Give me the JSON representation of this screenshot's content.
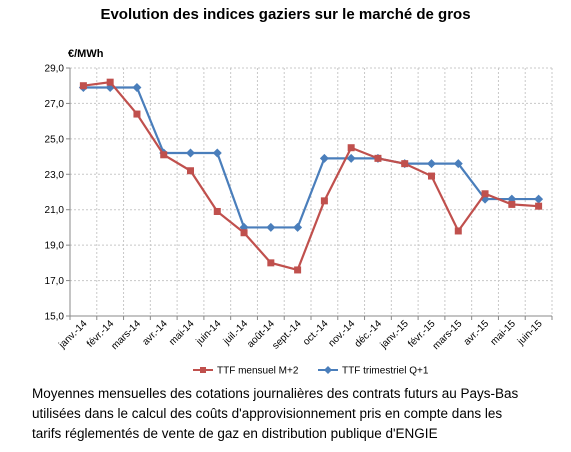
{
  "title": "Evolution des indices gaziers sur le marché de gros",
  "caption": {
    "line1": "Moyennes mensuelles des cotations journalières des contrats futurs au Pays-Bas",
    "line2": "utilisées dans le calcul des coûts d'approvisionnement pris en compte dans les",
    "line3": "tarifs réglementés de vente de gaz en distribution publique d'ENGIE"
  },
  "colors": {
    "series_m2": "#c0504d",
    "series_q1": "#4a7ebb",
    "grid": "#c8c8c8",
    "axis": "#888888"
  },
  "chart_data": {
    "type": "line",
    "ylabel": "€/MWh",
    "ylim": [
      15,
      29
    ],
    "yticks": [
      "15,0",
      "17,0",
      "19,0",
      "21,0",
      "23,0",
      "25,0",
      "27,0",
      "29,0"
    ],
    "grid": true,
    "legend_position": "bottom",
    "categories": [
      "janv.-14",
      "févr.-14",
      "mars-14",
      "avr.-14",
      "mai-14",
      "juin-14",
      "juil.-14",
      "août-14",
      "sept.-14",
      "oct.-14",
      "nov.-14",
      "déc.-14",
      "janv.-15",
      "févr.-15",
      "mars-15",
      "avr.-15",
      "mai-15",
      "juin-15"
    ],
    "series": [
      {
        "name": "TTF mensuel M+2",
        "marker": "square",
        "values": [
          28.0,
          28.2,
          26.4,
          24.1,
          23.2,
          20.9,
          19.7,
          18.0,
          17.6,
          21.5,
          24.5,
          23.9,
          23.6,
          22.9,
          19.8,
          21.9,
          21.3,
          21.2
        ]
      },
      {
        "name": "TTF trimestriel Q+1",
        "marker": "diamond",
        "values": [
          27.9,
          27.9,
          27.9,
          24.2,
          24.2,
          24.2,
          20.0,
          20.0,
          20.0,
          23.9,
          23.9,
          23.9,
          23.6,
          23.6,
          23.6,
          21.6,
          21.6,
          21.6
        ]
      }
    ]
  }
}
